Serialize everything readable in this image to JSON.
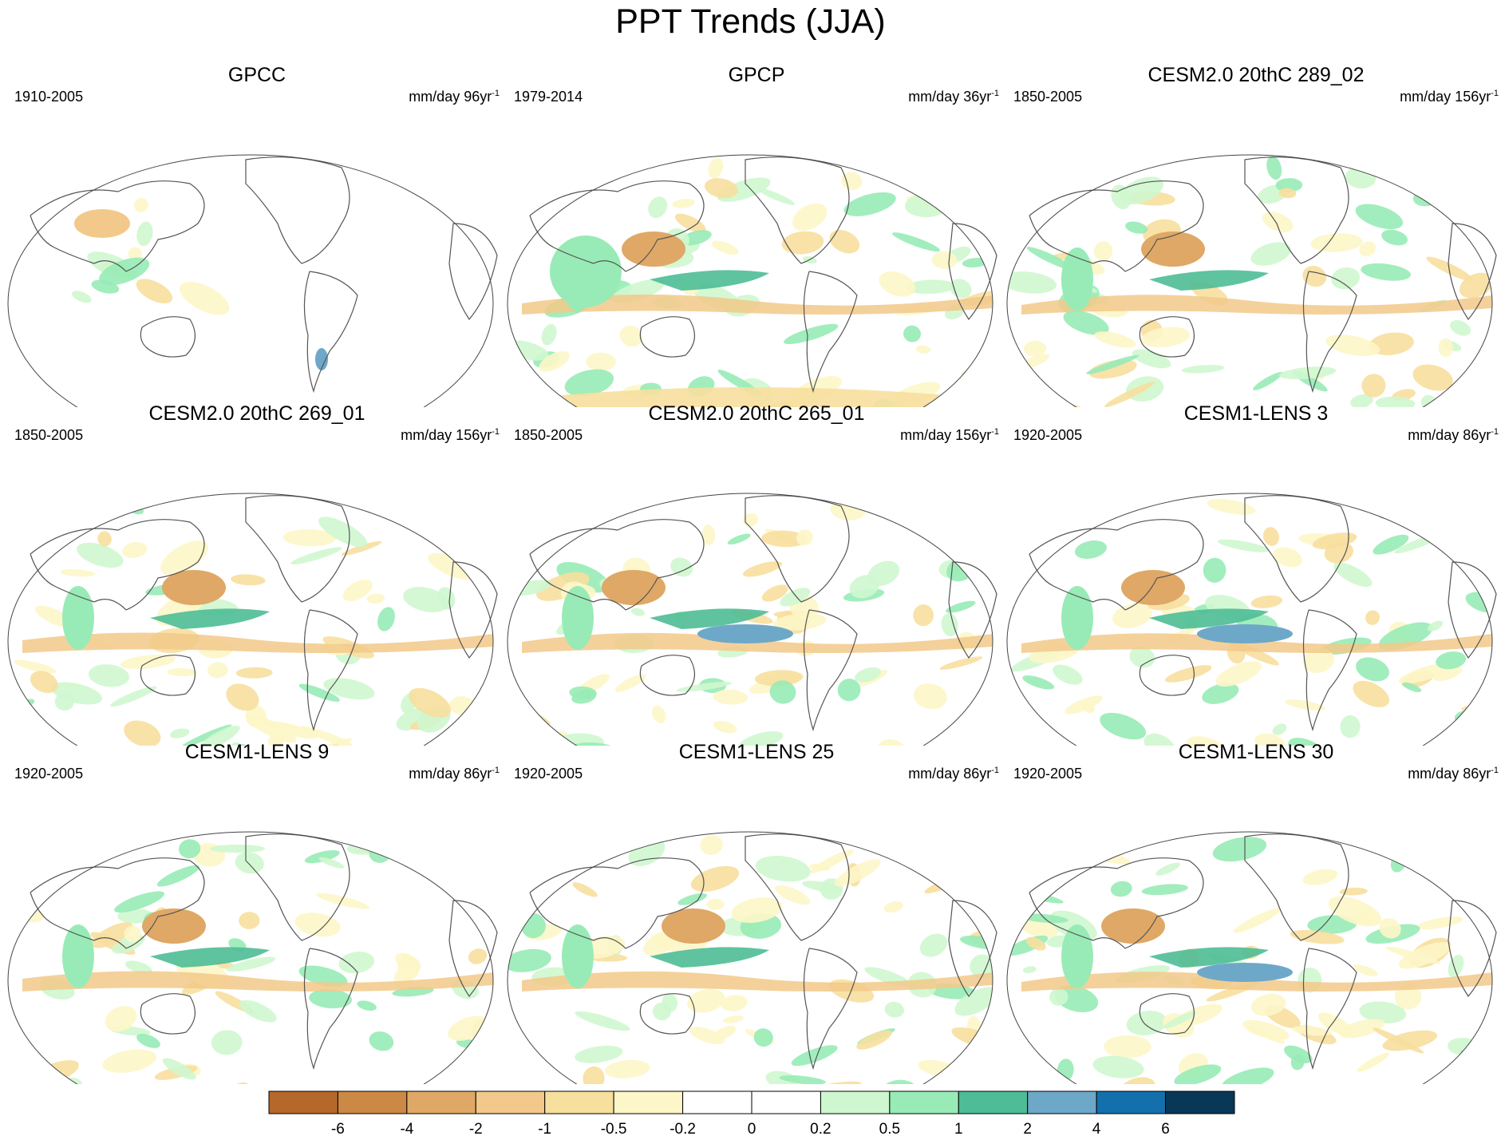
{
  "figure": {
    "title": "PPT Trends (JJA)"
  },
  "panels": [
    {
      "title": "GPCC",
      "period": "1910-2005",
      "units": "mm/day 96yr",
      "units_exp": "-1",
      "pattern": "gpcc"
    },
    {
      "title": "GPCP",
      "period": "1979-2014",
      "units": "mm/day 36yr",
      "units_exp": "-1",
      "pattern": "gpcp"
    },
    {
      "title": "CESM2.0 20thC 289_02",
      "period": "1850-2005",
      "units": "mm/day 156yr",
      "units_exp": "-1",
      "pattern": "model"
    },
    {
      "title": "CESM2.0 20thC 269_01",
      "period": "1850-2005",
      "units": "mm/day 156yr",
      "units_exp": "-1",
      "pattern": "model"
    },
    {
      "title": "CESM2.0 20thC 265_01",
      "period": "1850-2005",
      "units": "mm/day 156yr",
      "units_exp": "-1",
      "pattern": "model"
    },
    {
      "title": "CESM1-LENS 3",
      "period": "1920-2005",
      "units": "mm/day 86yr",
      "units_exp": "-1",
      "pattern": "model"
    },
    {
      "title": "CESM1-LENS 9",
      "period": "1920-2005",
      "units": "mm/day 86yr",
      "units_exp": "-1",
      "pattern": "model"
    },
    {
      "title": "CESM1-LENS 25",
      "period": "1920-2005",
      "units": "mm/day 86yr",
      "units_exp": "-1",
      "pattern": "model"
    },
    {
      "title": "CESM1-LENS 30",
      "period": "1920-2005",
      "units": "mm/day 86yr",
      "units_exp": "-1",
      "pattern": "model"
    }
  ],
  "colorbar": {
    "colors": [
      "#b5682a",
      "#cc8845",
      "#dfa866",
      "#f2c98a",
      "#f7df9e",
      "#fdf6c8",
      "#ffffff",
      "#ffffff",
      "#cff7cf",
      "#98ebb6",
      "#4ebc96",
      "#6ea8c9",
      "#1470ac",
      "#093857"
    ],
    "labels": [
      "-6",
      "-4",
      "-2",
      "-1",
      "-0.5",
      "-0.2",
      "0",
      "0.2",
      "0.5",
      "1",
      "2",
      "4",
      "6"
    ]
  },
  "map_colors": {
    "coast": "#555555",
    "outline": "#444444"
  }
}
